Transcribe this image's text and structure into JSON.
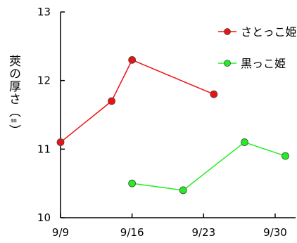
{
  "chart_data": {
    "type": "line",
    "title": "",
    "xlabel": "",
    "ylabel": "莢の厚さ（",
    "ylabel_unit": "㎜",
    "ylabel_close": "）",
    "x_date_range": [
      "9/9",
      "10/2"
    ],
    "xticks": [
      "9/9",
      "9/16",
      "9/23",
      "9/30"
    ],
    "ylim": [
      10,
      13
    ],
    "yticks": [
      "10",
      "11",
      "12",
      "13"
    ],
    "grid": false,
    "legend_position": "top-right",
    "series": [
      {
        "name": "さとっこ姫",
        "color": "#ee1111",
        "points": [
          {
            "x": "9/9",
            "y": 11.1
          },
          {
            "x": "9/14",
            "y": 11.7
          },
          {
            "x": "9/16",
            "y": 12.3
          },
          {
            "x": "9/24",
            "y": 11.8
          }
        ]
      },
      {
        "name": "黒っこ姫",
        "color": "#22ee22",
        "points": [
          {
            "x": "9/16",
            "y": 10.5
          },
          {
            "x": "9/21",
            "y": 10.4
          },
          {
            "x": "9/27",
            "y": 11.1
          },
          {
            "x": "10/1",
            "y": 10.9
          }
        ]
      }
    ]
  }
}
